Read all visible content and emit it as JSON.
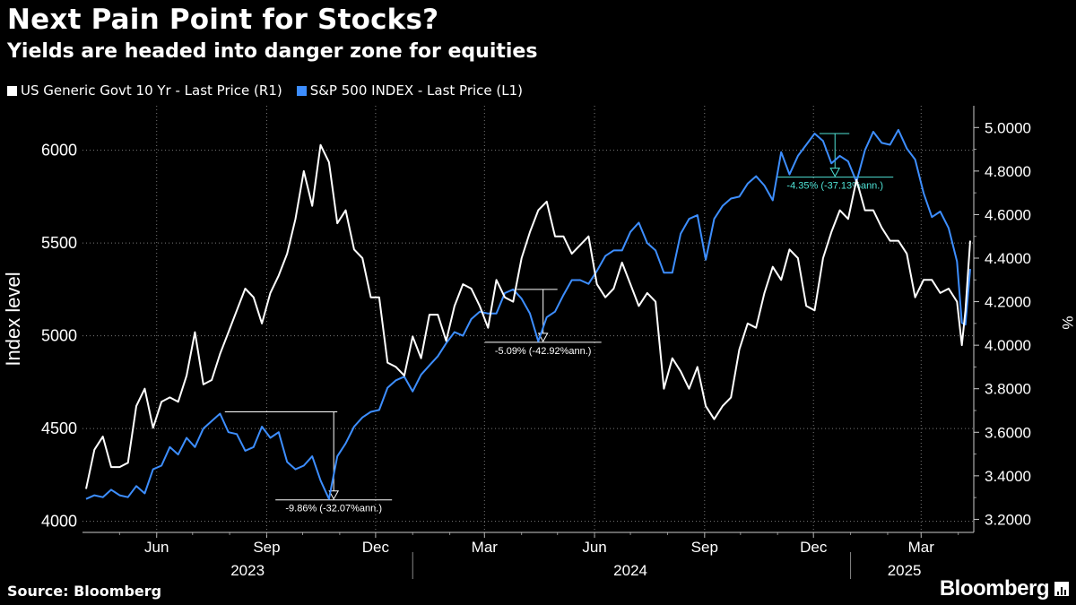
{
  "header": {
    "title": "Next Pain Point for Stocks?",
    "subtitle": "Yields are headed into danger zone for equities"
  },
  "footer": {
    "source": "Source: Bloomberg",
    "brand": "Bloomberg"
  },
  "chart_data": {
    "type": "line",
    "series": [
      {
        "name": "US Generic Govt 10 Yr - Last Price (R1)",
        "axis": "right",
        "color": "#ffffff",
        "unit": "%",
        "points": [
          [
            "2023-04-03",
            3.34
          ],
          [
            "2023-04-10",
            3.52
          ],
          [
            "2023-04-17",
            3.58
          ],
          [
            "2023-04-24",
            3.44
          ],
          [
            "2023-05-01",
            3.44
          ],
          [
            "2023-05-08",
            3.46
          ],
          [
            "2023-05-15",
            3.72
          ],
          [
            "2023-05-22",
            3.8
          ],
          [
            "2023-05-29",
            3.62
          ],
          [
            "2023-06-05",
            3.74
          ],
          [
            "2023-06-12",
            3.76
          ],
          [
            "2023-06-19",
            3.74
          ],
          [
            "2023-06-26",
            3.86
          ],
          [
            "2023-07-03",
            4.06
          ],
          [
            "2023-07-10",
            3.82
          ],
          [
            "2023-07-17",
            3.84
          ],
          [
            "2023-07-24",
            3.96
          ],
          [
            "2023-07-31",
            4.06
          ],
          [
            "2023-08-07",
            4.16
          ],
          [
            "2023-08-14",
            4.26
          ],
          [
            "2023-08-21",
            4.22
          ],
          [
            "2023-08-28",
            4.1
          ],
          [
            "2023-09-04",
            4.24
          ],
          [
            "2023-09-11",
            4.32
          ],
          [
            "2023-09-18",
            4.42
          ],
          [
            "2023-09-25",
            4.58
          ],
          [
            "2023-10-02",
            4.8
          ],
          [
            "2023-10-09",
            4.64
          ],
          [
            "2023-10-16",
            4.92
          ],
          [
            "2023-10-23",
            4.84
          ],
          [
            "2023-10-30",
            4.56
          ],
          [
            "2023-11-06",
            4.62
          ],
          [
            "2023-11-13",
            4.44
          ],
          [
            "2023-11-20",
            4.4
          ],
          [
            "2023-11-27",
            4.22
          ],
          [
            "2023-12-04",
            4.22
          ],
          [
            "2023-12-11",
            3.92
          ],
          [
            "2023-12-18",
            3.9
          ],
          [
            "2023-12-25",
            3.86
          ],
          [
            "2024-01-01",
            4.04
          ],
          [
            "2024-01-08",
            3.94
          ],
          [
            "2024-01-15",
            4.14
          ],
          [
            "2024-01-22",
            4.14
          ],
          [
            "2024-01-29",
            4.02
          ],
          [
            "2024-02-05",
            4.18
          ],
          [
            "2024-02-12",
            4.28
          ],
          [
            "2024-02-19",
            4.26
          ],
          [
            "2024-02-26",
            4.18
          ],
          [
            "2024-03-04",
            4.08
          ],
          [
            "2024-03-11",
            4.3
          ],
          [
            "2024-03-18",
            4.22
          ],
          [
            "2024-03-25",
            4.2
          ],
          [
            "2024-04-01",
            4.4
          ],
          [
            "2024-04-08",
            4.52
          ],
          [
            "2024-04-15",
            4.62
          ],
          [
            "2024-04-22",
            4.66
          ],
          [
            "2024-04-29",
            4.5
          ],
          [
            "2024-05-06",
            4.5
          ],
          [
            "2024-05-13",
            4.42
          ],
          [
            "2024-05-20",
            4.46
          ],
          [
            "2024-05-27",
            4.5
          ],
          [
            "2024-06-03",
            4.28
          ],
          [
            "2024-06-10",
            4.22
          ],
          [
            "2024-06-17",
            4.26
          ],
          [
            "2024-06-24",
            4.38
          ],
          [
            "2024-07-01",
            4.28
          ],
          [
            "2024-07-08",
            4.18
          ],
          [
            "2024-07-15",
            4.24
          ],
          [
            "2024-07-22",
            4.2
          ],
          [
            "2024-07-29",
            3.8
          ],
          [
            "2024-08-05",
            3.94
          ],
          [
            "2024-08-12",
            3.88
          ],
          [
            "2024-08-19",
            3.8
          ],
          [
            "2024-08-26",
            3.9
          ],
          [
            "2024-09-02",
            3.72
          ],
          [
            "2024-09-09",
            3.66
          ],
          [
            "2024-09-16",
            3.72
          ],
          [
            "2024-09-23",
            3.76
          ],
          [
            "2024-09-30",
            3.98
          ],
          [
            "2024-10-07",
            4.1
          ],
          [
            "2024-10-14",
            4.08
          ],
          [
            "2024-10-21",
            4.24
          ],
          [
            "2024-10-28",
            4.36
          ],
          [
            "2024-11-04",
            4.3
          ],
          [
            "2024-11-11",
            4.44
          ],
          [
            "2024-11-18",
            4.4
          ],
          [
            "2024-11-25",
            4.18
          ],
          [
            "2024-12-02",
            4.16
          ],
          [
            "2024-12-09",
            4.4
          ],
          [
            "2024-12-16",
            4.52
          ],
          [
            "2024-12-23",
            4.62
          ],
          [
            "2024-12-30",
            4.58
          ],
          [
            "2025-01-06",
            4.76
          ],
          [
            "2025-01-13",
            4.62
          ],
          [
            "2025-01-20",
            4.62
          ],
          [
            "2025-01-27",
            4.54
          ],
          [
            "2025-02-03",
            4.48
          ],
          [
            "2025-02-10",
            4.48
          ],
          [
            "2025-02-17",
            4.42
          ],
          [
            "2025-02-24",
            4.22
          ],
          [
            "2025-03-03",
            4.3
          ],
          [
            "2025-03-10",
            4.3
          ],
          [
            "2025-03-17",
            4.24
          ],
          [
            "2025-03-24",
            4.26
          ],
          [
            "2025-03-31",
            4.2
          ],
          [
            "2025-04-04",
            4.0
          ],
          [
            "2025-04-07",
            4.16
          ],
          [
            "2025-04-11",
            4.48
          ]
        ]
      },
      {
        "name": "S&P 500 INDEX - Last Price (L1)",
        "axis": "left",
        "color": "#3d8eff",
        "unit": "Index level",
        "points": [
          [
            "2023-04-03",
            4120
          ],
          [
            "2023-04-10",
            4140
          ],
          [
            "2023-04-17",
            4130
          ],
          [
            "2023-04-24",
            4170
          ],
          [
            "2023-05-01",
            4140
          ],
          [
            "2023-05-08",
            4130
          ],
          [
            "2023-05-15",
            4190
          ],
          [
            "2023-05-22",
            4150
          ],
          [
            "2023-05-29",
            4280
          ],
          [
            "2023-06-05",
            4300
          ],
          [
            "2023-06-12",
            4400
          ],
          [
            "2023-06-19",
            4360
          ],
          [
            "2023-06-26",
            4450
          ],
          [
            "2023-07-03",
            4400
          ],
          [
            "2023-07-10",
            4500
          ],
          [
            "2023-07-17",
            4540
          ],
          [
            "2023-07-24",
            4580
          ],
          [
            "2023-07-31",
            4480
          ],
          [
            "2023-08-07",
            4470
          ],
          [
            "2023-08-14",
            4380
          ],
          [
            "2023-08-21",
            4400
          ],
          [
            "2023-08-28",
            4510
          ],
          [
            "2023-09-04",
            4450
          ],
          [
            "2023-09-11",
            4480
          ],
          [
            "2023-09-18",
            4320
          ],
          [
            "2023-09-25",
            4280
          ],
          [
            "2023-10-02",
            4300
          ],
          [
            "2023-10-09",
            4350
          ],
          [
            "2023-10-16",
            4220
          ],
          [
            "2023-10-23",
            4120
          ],
          [
            "2023-10-30",
            4350
          ],
          [
            "2023-11-06",
            4420
          ],
          [
            "2023-11-13",
            4510
          ],
          [
            "2023-11-20",
            4560
          ],
          [
            "2023-11-27",
            4590
          ],
          [
            "2023-12-04",
            4600
          ],
          [
            "2023-12-11",
            4720
          ],
          [
            "2023-12-18",
            4760
          ],
          [
            "2023-12-25",
            4780
          ],
          [
            "2024-01-01",
            4700
          ],
          [
            "2024-01-08",
            4790
          ],
          [
            "2024-01-15",
            4840
          ],
          [
            "2024-01-22",
            4890
          ],
          [
            "2024-01-29",
            4960
          ],
          [
            "2024-02-05",
            5020
          ],
          [
            "2024-02-12",
            5000
          ],
          [
            "2024-02-19",
            5090
          ],
          [
            "2024-02-26",
            5130
          ],
          [
            "2024-03-04",
            5120
          ],
          [
            "2024-03-11",
            5120
          ],
          [
            "2024-03-18",
            5230
          ],
          [
            "2024-03-25",
            5250
          ],
          [
            "2024-04-01",
            5200
          ],
          [
            "2024-04-08",
            5120
          ],
          [
            "2024-04-15",
            4970
          ],
          [
            "2024-04-22",
            5100
          ],
          [
            "2024-04-29",
            5130
          ],
          [
            "2024-05-06",
            5220
          ],
          [
            "2024-05-13",
            5300
          ],
          [
            "2024-05-20",
            5300
          ],
          [
            "2024-05-27",
            5280
          ],
          [
            "2024-06-03",
            5350
          ],
          [
            "2024-06-10",
            5430
          ],
          [
            "2024-06-17",
            5460
          ],
          [
            "2024-06-24",
            5460
          ],
          [
            "2024-07-01",
            5560
          ],
          [
            "2024-07-08",
            5610
          ],
          [
            "2024-07-15",
            5500
          ],
          [
            "2024-07-22",
            5460
          ],
          [
            "2024-07-29",
            5340
          ],
          [
            "2024-08-05",
            5340
          ],
          [
            "2024-08-12",
            5550
          ],
          [
            "2024-08-19",
            5630
          ],
          [
            "2024-08-26",
            5650
          ],
          [
            "2024-09-02",
            5410
          ],
          [
            "2024-09-09",
            5630
          ],
          [
            "2024-09-16",
            5700
          ],
          [
            "2024-09-23",
            5740
          ],
          [
            "2024-09-30",
            5750
          ],
          [
            "2024-10-07",
            5820
          ],
          [
            "2024-10-14",
            5860
          ],
          [
            "2024-10-21",
            5810
          ],
          [
            "2024-10-28",
            5730
          ],
          [
            "2024-11-04",
            5990
          ],
          [
            "2024-11-11",
            5870
          ],
          [
            "2024-11-18",
            5970
          ],
          [
            "2024-11-25",
            6030
          ],
          [
            "2024-12-02",
            6090
          ],
          [
            "2024-12-09",
            6050
          ],
          [
            "2024-12-16",
            5930
          ],
          [
            "2024-12-23",
            5970
          ],
          [
            "2024-12-30",
            5940
          ],
          [
            "2025-01-06",
            5830
          ],
          [
            "2025-01-13",
            6000
          ],
          [
            "2025-01-20",
            6100
          ],
          [
            "2025-01-27",
            6040
          ],
          [
            "2025-02-03",
            6030
          ],
          [
            "2025-02-10",
            6110
          ],
          [
            "2025-02-17",
            6010
          ],
          [
            "2025-02-24",
            5950
          ],
          [
            "2025-03-03",
            5770
          ],
          [
            "2025-03-10",
            5640
          ],
          [
            "2025-03-17",
            5670
          ],
          [
            "2025-03-24",
            5580
          ],
          [
            "2025-03-31",
            5400
          ],
          [
            "2025-04-04",
            5070
          ],
          [
            "2025-04-07",
            5060
          ],
          [
            "2025-04-11",
            5360
          ]
        ]
      }
    ],
    "left_axis": {
      "label": "Index level",
      "ticks": [
        4000,
        4500,
        5000,
        5500,
        6000
      ],
      "range": [
        3940,
        6240
      ]
    },
    "right_axis": {
      "label": "%",
      "ticks": [
        "3.2000",
        "3.4000",
        "3.6000",
        "3.8000",
        "4.0000",
        "4.2000",
        "4.4000",
        "4.6000",
        "4.8000",
        "5.0000"
      ],
      "range": [
        3.14,
        5.1
      ]
    },
    "x_axis": {
      "start": "2023-03-31",
      "end": "2025-04-14",
      "months": [
        {
          "label": "Jun",
          "date": "2023-06-01"
        },
        {
          "label": "Sep",
          "date": "2023-09-01"
        },
        {
          "label": "Dec",
          "date": "2023-12-01"
        },
        {
          "label": "Mar",
          "date": "2024-03-01"
        },
        {
          "label": "Jun",
          "date": "2024-06-01"
        },
        {
          "label": "Sep",
          "date": "2024-09-01"
        },
        {
          "label": "Dec",
          "date": "2024-12-01"
        },
        {
          "label": "Mar",
          "date": "2025-03-01"
        }
      ],
      "years": [
        {
          "label": "2023",
          "date": "2023-08-16"
        },
        {
          "label": "2024",
          "date": "2024-07-01"
        },
        {
          "label": "2025",
          "date": "2025-02-15"
        }
      ],
      "year_dividers": [
        "2024-01-01",
        "2025-01-01"
      ]
    },
    "grid": true,
    "legend_position": "top-left",
    "annotations": [
      {
        "label": "-9.86% (-32.07%ann.)",
        "color": "#ffffff",
        "peak": [
          "2023-07-28",
          4590
        ],
        "trough": [
          "2023-10-27",
          4120
        ],
        "line_end": "2023-10-30"
      },
      {
        "label": "-5.09% (-42.92%ann.)",
        "color": "#ffffff",
        "peak": [
          "2024-03-28",
          5250
        ],
        "trough": [
          "2024-04-19",
          4970
        ],
        "line_end": "2024-05-01"
      },
      {
        "label": "-4.35% (-37.13%ann.)",
        "color": "#4fe3d6",
        "peak": [
          "2024-12-06",
          6090
        ],
        "trough": [
          "2024-12-19",
          5860
        ],
        "line_end": "2024-12-31"
      }
    ]
  }
}
